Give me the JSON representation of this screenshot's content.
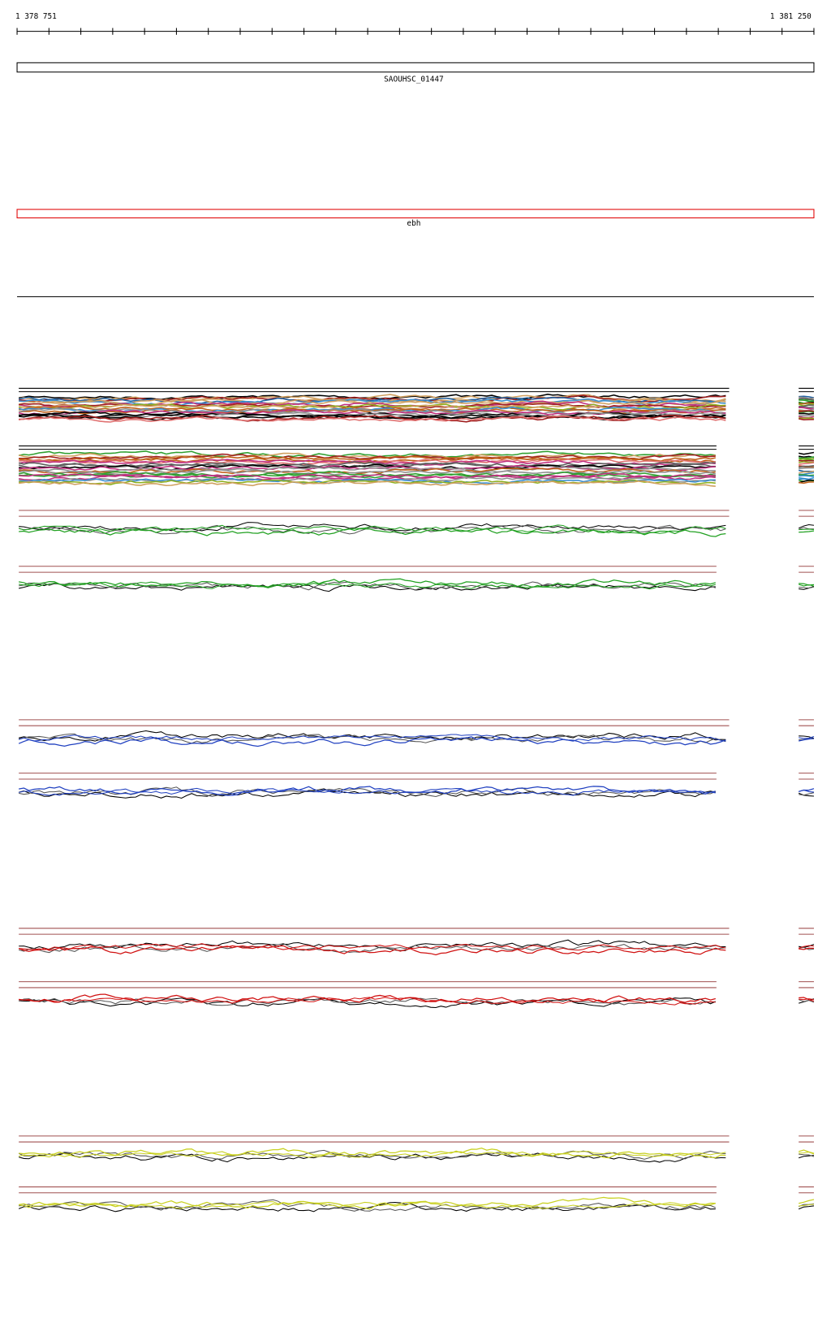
{
  "ruler": {
    "start": "1 378 751",
    "end": "1 381 250"
  },
  "features": [
    {
      "label": "SAOUHSC_01447"
    },
    {
      "label": "ebh"
    }
  ]
}
